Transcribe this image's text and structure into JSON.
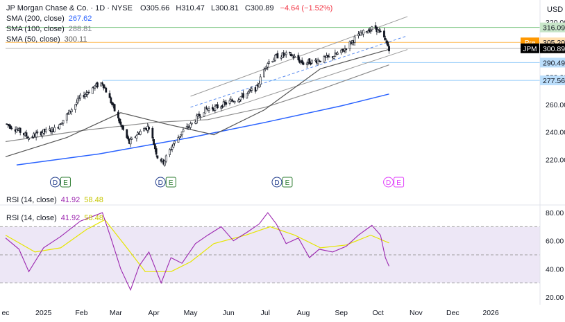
{
  "header": {
    "symbol": "JP Morgan Chase & Co. · 1D · NYSE",
    "ohlc": {
      "o_label": "O",
      "o": "305.66",
      "h_label": "H",
      "h": "310.47",
      "l_label": "L",
      "l": "300.81",
      "c_label": "C",
      "c": "300.89",
      "change": "−4.64 (−1.52%)"
    },
    "sma200": {
      "label": "SMA (200, close)",
      "value": "267.62"
    },
    "sma100": {
      "label": "SMA (100, close)",
      "value": "288.81"
    },
    "sma50": {
      "label": "SMA (50, close)",
      "value": "300.11"
    },
    "currency": "USD"
  },
  "rsi_legend": {
    "label1": "RSI (14, close)",
    "v1a": "41.92",
    "v1b": "58.48",
    "label2": "RSI (14, close)",
    "v2a": "41.92",
    "v2b": "58.48"
  },
  "badges": [
    {
      "text": "316.09",
      "color": "#c8e6c9",
      "text_color": "#131722"
    },
    {
      "text": "305.20",
      "color": "#ffe0b2",
      "text_color": "#131722",
      "tag": "Pre",
      "tag_color": "#ff9800"
    },
    {
      "text": "300.89",
      "color": "#000000",
      "text_color": "#ffffff",
      "tag": "JPM",
      "tag_color": "#000000"
    },
    {
      "text": "290.49",
      "color": "#bbdefb",
      "text_color": "#131722"
    },
    {
      "text": "277.56",
      "color": "#bbdefb",
      "text_color": "#131722"
    }
  ],
  "colors": {
    "candle": "#131722",
    "sma200": "#2962ff",
    "sma100": "#8a8a8a",
    "sma50": "#555555",
    "channel": "#999999",
    "channel_mid": "#5b8def",
    "rsi": "#9c27b0",
    "rsi_ma": "#e6e600",
    "rsi_band": "#ede7f6",
    "hline_green": "#81c784",
    "hline_orange": "#ffb74d",
    "hline_blue": "#90caf9",
    "event_d": "#1e3a8a",
    "event_e": "#2e7d32"
  },
  "events": [
    {
      "date": "2025-01-15",
      "pink": false
    },
    {
      "date": "2025-04-11",
      "pink": false
    },
    {
      "date": "2025-07-15",
      "pink": false
    },
    {
      "date": "2025-10-14",
      "pink": true
    }
  ],
  "event_letters": [
    "D",
    "E"
  ],
  "chart_data": {
    "type": "candlestick",
    "x_range": [
      "2024-12-01",
      "2026-01-31"
    ],
    "price_ylim": [
      200,
      330
    ],
    "price_ticks": [
      "320.00",
      "300.00",
      "280.00",
      "260.00",
      "240.00",
      "220.00"
    ],
    "rsi_ylim": [
      15,
      85
    ],
    "rsi_ticks": [
      "80.00",
      "60.00",
      "40.00",
      "20.00"
    ],
    "rsi_levels": [
      70,
      50,
      30
    ],
    "x_ticks": [
      {
        "date": "2024-12-01",
        "label": "ec"
      },
      {
        "date": "2025-01-01",
        "label": "2025"
      },
      {
        "date": "2025-02-01",
        "label": "Feb"
      },
      {
        "date": "2025-03-01",
        "label": "Mar"
      },
      {
        "date": "2025-04-01",
        "label": "Apr"
      },
      {
        "date": "2025-05-01",
        "label": "May"
      },
      {
        "date": "2025-06-01",
        "label": "Jun"
      },
      {
        "date": "2025-07-01",
        "label": "Jul"
      },
      {
        "date": "2025-08-01",
        "label": "Aug"
      },
      {
        "date": "2025-09-01",
        "label": "Sep"
      },
      {
        "date": "2025-10-01",
        "label": "Oct"
      },
      {
        "date": "2025-11-01",
        "label": "Nov"
      },
      {
        "date": "2025-12-01",
        "label": "Dec"
      },
      {
        "date": "2026-01-01",
        "label": "2026"
      }
    ],
    "close_path": [
      [
        "2024-12-01",
        246
      ],
      [
        "2024-12-10",
        242
      ],
      [
        "2024-12-20",
        236
      ],
      [
        "2024-12-31",
        240
      ],
      [
        "2025-01-10",
        242
      ],
      [
        "2025-01-20",
        252
      ],
      [
        "2025-01-31",
        265
      ],
      [
        "2025-02-10",
        272
      ],
      [
        "2025-02-18",
        276
      ],
      [
        "2025-02-25",
        262
      ],
      [
        "2025-03-05",
        245
      ],
      [
        "2025-03-12",
        232
      ],
      [
        "2025-03-20",
        240
      ],
      [
        "2025-03-28",
        244
      ],
      [
        "2025-04-04",
        222
      ],
      [
        "2025-04-09",
        218
      ],
      [
        "2025-04-16",
        230
      ],
      [
        "2025-04-24",
        240
      ],
      [
        "2025-05-01",
        245
      ],
      [
        "2025-05-12",
        256
      ],
      [
        "2025-05-22",
        258
      ],
      [
        "2025-06-02",
        262
      ],
      [
        "2025-06-12",
        266
      ],
      [
        "2025-06-24",
        272
      ],
      [
        "2025-07-02",
        290
      ],
      [
        "2025-07-12",
        296
      ],
      [
        "2025-07-22",
        296
      ],
      [
        "2025-08-01",
        290
      ],
      [
        "2025-08-12",
        292
      ],
      [
        "2025-08-22",
        294
      ],
      [
        "2025-09-01",
        298
      ],
      [
        "2025-09-12",
        308
      ],
      [
        "2025-09-22",
        314
      ],
      [
        "2025-09-29",
        316
      ],
      [
        "2025-10-06",
        308
      ],
      [
        "2025-10-10",
        300.89
      ]
    ],
    "series": [
      {
        "name": "SMA (200, close)",
        "points": [
          [
            "2024-12-10",
            216
          ],
          [
            "2025-02-15",
            224
          ],
          [
            "2025-05-01",
            236
          ],
          [
            "2025-07-01",
            247
          ],
          [
            "2025-09-01",
            259
          ],
          [
            "2025-10-10",
            267.62
          ]
        ]
      },
      {
        "name": "SMA (100, close)",
        "points": [
          [
            "2024-12-01",
            233
          ],
          [
            "2025-02-01",
            241
          ],
          [
            "2025-04-01",
            247
          ],
          [
            "2025-05-15",
            249
          ],
          [
            "2025-07-01",
            258
          ],
          [
            "2025-08-15",
            271
          ],
          [
            "2025-10-10",
            288.81
          ]
        ]
      },
      {
        "name": "SMA (50, close)",
        "points": [
          [
            "2024-12-01",
            222
          ],
          [
            "2025-01-20",
            236
          ],
          [
            "2025-03-05",
            254
          ],
          [
            "2025-04-10",
            246
          ],
          [
            "2025-05-20",
            238
          ],
          [
            "2025-06-30",
            256
          ],
          [
            "2025-08-15",
            286
          ],
          [
            "2025-10-10",
            300.11
          ]
        ]
      },
      {
        "name": "RSI (14, close)",
        "points": [
          [
            "2024-12-01",
            62
          ],
          [
            "2024-12-12",
            54
          ],
          [
            "2024-12-20",
            38
          ],
          [
            "2025-01-01",
            55
          ],
          [
            "2025-01-15",
            63
          ],
          [
            "2025-01-31",
            74
          ],
          [
            "2025-02-12",
            78
          ],
          [
            "2025-02-18",
            80
          ],
          [
            "2025-02-25",
            62
          ],
          [
            "2025-03-05",
            40
          ],
          [
            "2025-03-13",
            25
          ],
          [
            "2025-03-20",
            42
          ],
          [
            "2025-03-28",
            52
          ],
          [
            "2025-04-07",
            30
          ],
          [
            "2025-04-15",
            48
          ],
          [
            "2025-04-24",
            44
          ],
          [
            "2025-05-05",
            58
          ],
          [
            "2025-05-15",
            64
          ],
          [
            "2025-05-26",
            70
          ],
          [
            "2025-06-05",
            60
          ],
          [
            "2025-06-16",
            66
          ],
          [
            "2025-06-26",
            72
          ],
          [
            "2025-07-03",
            80
          ],
          [
            "2025-07-10",
            72
          ],
          [
            "2025-07-18",
            58
          ],
          [
            "2025-07-28",
            62
          ],
          [
            "2025-08-06",
            48
          ],
          [
            "2025-08-14",
            54
          ],
          [
            "2025-08-25",
            52
          ],
          [
            "2025-09-05",
            56
          ],
          [
            "2025-09-15",
            64
          ],
          [
            "2025-09-26",
            71
          ],
          [
            "2025-10-03",
            64
          ],
          [
            "2025-10-07",
            48
          ],
          [
            "2025-10-10",
            41.92
          ]
        ]
      },
      {
        "name": "RSI MA",
        "points": [
          [
            "2024-12-01",
            64
          ],
          [
            "2024-12-25",
            52
          ],
          [
            "2025-01-15",
            55
          ],
          [
            "2025-02-05",
            68
          ],
          [
            "2025-02-20",
            75
          ],
          [
            "2025-03-10",
            55
          ],
          [
            "2025-03-25",
            38
          ],
          [
            "2025-04-15",
            38
          ],
          [
            "2025-05-01",
            45
          ],
          [
            "2025-05-20",
            58
          ],
          [
            "2025-06-15",
            64
          ],
          [
            "2025-07-05",
            70
          ],
          [
            "2025-07-25",
            64
          ],
          [
            "2025-08-15",
            55
          ],
          [
            "2025-09-05",
            57
          ],
          [
            "2025-09-25",
            64
          ],
          [
            "2025-10-10",
            58.48
          ]
        ]
      }
    ],
    "levels": [
      {
        "value": 316.09,
        "color": "green",
        "from": "2024-12-01"
      },
      {
        "value": 305.2,
        "color": "orange",
        "from": "2024-12-01"
      },
      {
        "value": 300.89,
        "color": "black",
        "from": "2024-12-01"
      },
      {
        "value": 290.49,
        "color": "blue",
        "from": "2025-09-18"
      },
      {
        "value": 277.56,
        "color": "blue",
        "from": "2025-02-18"
      }
    ],
    "channel": {
      "start": "2025-05-01",
      "end": "2025-10-25",
      "upper": [
        266,
        324
      ],
      "middle": [
        258,
        310
      ],
      "lower": [
        248,
        300
      ]
    }
  }
}
